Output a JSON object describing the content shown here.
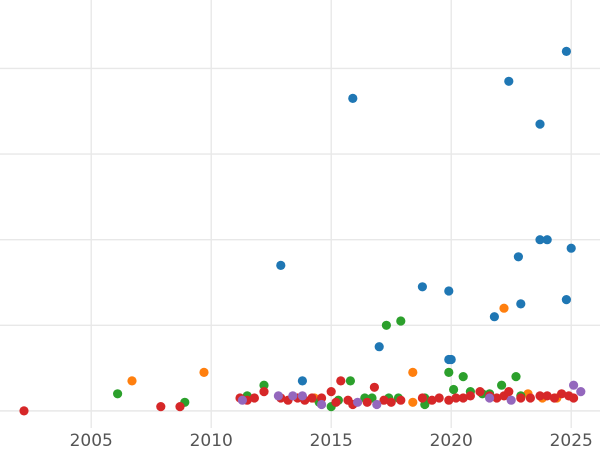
{
  "chart_data": {
    "type": "scatter",
    "title": "",
    "xlabel": "",
    "ylabel": "",
    "xlim": [
      2001.2,
      2026.2
    ],
    "ylim": [
      -0.4,
      9.6
    ],
    "grid": true,
    "x_ticks": [
      2005,
      2010,
      2015,
      2020,
      2025
    ],
    "x_tick_labels": [
      "2005",
      "2010",
      "2015",
      "2020",
      "2025"
    ],
    "y_ticks": [
      0,
      2,
      4,
      6,
      8
    ],
    "y_tick_labels_visible": false,
    "series": [
      {
        "color": "#1f77b4",
        "points": [
          [
            2012.9,
            3.4
          ],
          [
            2013.8,
            0.7
          ],
          [
            2015.9,
            7.3
          ],
          [
            2017.0,
            1.5
          ],
          [
            2018.8,
            2.9
          ],
          [
            2019.9,
            2.8
          ],
          [
            2019.9,
            1.2
          ],
          [
            2020.0,
            1.2
          ],
          [
            2021.8,
            2.2
          ],
          [
            2022.4,
            7.7
          ],
          [
            2022.8,
            3.6
          ],
          [
            2022.9,
            2.5
          ],
          [
            2023.7,
            6.7
          ],
          [
            2023.7,
            4.0
          ],
          [
            2024.0,
            4.0
          ],
          [
            2024.8,
            8.4
          ],
          [
            2024.8,
            2.6
          ],
          [
            2025.0,
            3.8
          ]
        ]
      },
      {
        "color": "#ff7f0e",
        "points": [
          [
            2006.7,
            0.7
          ],
          [
            2009.7,
            0.9
          ],
          [
            2014.3,
            0.3
          ],
          [
            2018.4,
            0.9
          ],
          [
            2018.4,
            0.2
          ],
          [
            2022.2,
            2.4
          ],
          [
            2023.2,
            0.4
          ],
          [
            2023.8,
            0.3
          ],
          [
            2024.4,
            0.3
          ]
        ]
      },
      {
        "color": "#2ca02c",
        "points": [
          [
            2006.1,
            0.4
          ],
          [
            2008.9,
            0.2
          ],
          [
            2011.5,
            0.35
          ],
          [
            2012.2,
            0.6
          ],
          [
            2014.5,
            0.2
          ],
          [
            2015.0,
            0.1
          ],
          [
            2015.3,
            0.25
          ],
          [
            2015.8,
            0.7
          ],
          [
            2016.4,
            0.3
          ],
          [
            2016.7,
            0.3
          ],
          [
            2017.3,
            2.0
          ],
          [
            2017.4,
            0.3
          ],
          [
            2017.8,
            0.3
          ],
          [
            2017.9,
            2.1
          ],
          [
            2018.9,
            0.15
          ],
          [
            2018.9,
            0.3
          ],
          [
            2019.9,
            0.9
          ],
          [
            2020.1,
            0.5
          ],
          [
            2020.5,
            0.8
          ],
          [
            2020.8,
            0.45
          ],
          [
            2021.3,
            0.4
          ],
          [
            2021.6,
            0.4
          ],
          [
            2022.1,
            0.6
          ],
          [
            2022.7,
            0.8
          ],
          [
            2022.9,
            0.35
          ]
        ]
      },
      {
        "color": "#d62728",
        "points": [
          [
            2002.2,
            0.0
          ],
          [
            2007.9,
            0.1
          ],
          [
            2008.7,
            0.1
          ],
          [
            2011.2,
            0.3
          ],
          [
            2011.5,
            0.25
          ],
          [
            2011.8,
            0.3
          ],
          [
            2012.2,
            0.45
          ],
          [
            2012.9,
            0.3
          ],
          [
            2013.2,
            0.25
          ],
          [
            2013.6,
            0.3
          ],
          [
            2013.9,
            0.25
          ],
          [
            2014.2,
            0.3
          ],
          [
            2014.6,
            0.3
          ],
          [
            2015.0,
            0.45
          ],
          [
            2015.2,
            0.2
          ],
          [
            2015.4,
            0.7
          ],
          [
            2015.7,
            0.25
          ],
          [
            2015.9,
            0.15
          ],
          [
            2016.5,
            0.2
          ],
          [
            2016.8,
            0.55
          ],
          [
            2017.2,
            0.25
          ],
          [
            2017.5,
            0.2
          ],
          [
            2017.9,
            0.25
          ],
          [
            2018.8,
            0.3
          ],
          [
            2019.2,
            0.25
          ],
          [
            2019.5,
            0.3
          ],
          [
            2019.9,
            0.25
          ],
          [
            2020.2,
            0.3
          ],
          [
            2020.5,
            0.3
          ],
          [
            2020.8,
            0.35
          ],
          [
            2021.2,
            0.45
          ],
          [
            2021.6,
            0.35
          ],
          [
            2021.9,
            0.3
          ],
          [
            2022.2,
            0.35
          ],
          [
            2022.4,
            0.45
          ],
          [
            2022.9,
            0.3
          ],
          [
            2023.3,
            0.3
          ],
          [
            2023.7,
            0.35
          ],
          [
            2024.0,
            0.35
          ],
          [
            2024.3,
            0.3
          ],
          [
            2024.6,
            0.4
          ],
          [
            2024.9,
            0.35
          ],
          [
            2025.1,
            0.3
          ]
        ]
      },
      {
        "color": "#9467bd",
        "points": [
          [
            2011.3,
            0.25
          ],
          [
            2012.8,
            0.35
          ],
          [
            2013.4,
            0.35
          ],
          [
            2013.8,
            0.35
          ],
          [
            2014.6,
            0.15
          ],
          [
            2016.1,
            0.2
          ],
          [
            2016.9,
            0.15
          ],
          [
            2021.6,
            0.3
          ],
          [
            2022.5,
            0.25
          ],
          [
            2025.1,
            0.6
          ],
          [
            2025.4,
            0.45
          ]
        ]
      }
    ]
  }
}
